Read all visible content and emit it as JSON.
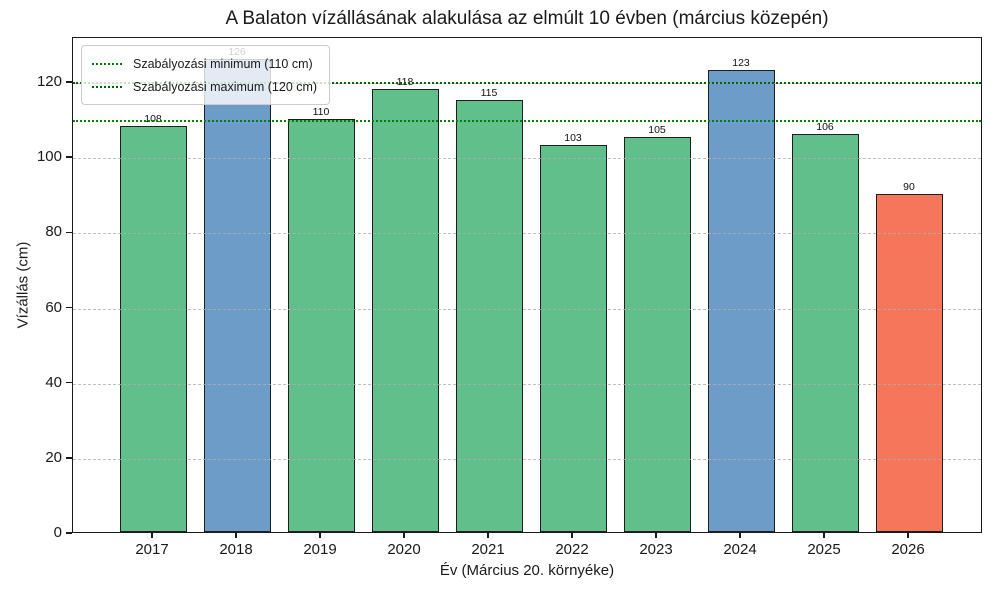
{
  "chart_data": {
    "type": "bar",
    "title": "A Balaton vízállásának alakulása az elmúlt 10 évben (március közepén)",
    "xlabel": "Év (Március 20. környéke)",
    "ylabel": "Vízállás (cm)",
    "categories": [
      "2017",
      "2018",
      "2019",
      "2020",
      "2021",
      "2022",
      "2023",
      "2024",
      "2025",
      "2026"
    ],
    "values": [
      108,
      126,
      110,
      118,
      115,
      103,
      105,
      123,
      106,
      90
    ],
    "bar_colors": [
      "#61bf8c",
      "#6d9cc8",
      "#61bf8c",
      "#61bf8c",
      "#61bf8c",
      "#61bf8c",
      "#61bf8c",
      "#6d9cc8",
      "#61bf8c",
      "#f6765c"
    ],
    "bar_edge_color": "#1f1f1f",
    "ylim": [
      0,
      132
    ],
    "yticks": [
      0,
      20,
      40,
      60,
      80,
      100,
      120
    ],
    "grid": "horizontal-dashed",
    "grid_color": "#afafaf",
    "reference_lines": [
      {
        "label": "Szabályozási minimum (110 cm)",
        "value": 110,
        "color": "#008000",
        "style": "dotted"
      },
      {
        "label": "Szabályozási maximum (120 cm)",
        "value": 120,
        "color": "#006400",
        "style": "dotted"
      }
    ],
    "legend_position": "upper-left"
  }
}
